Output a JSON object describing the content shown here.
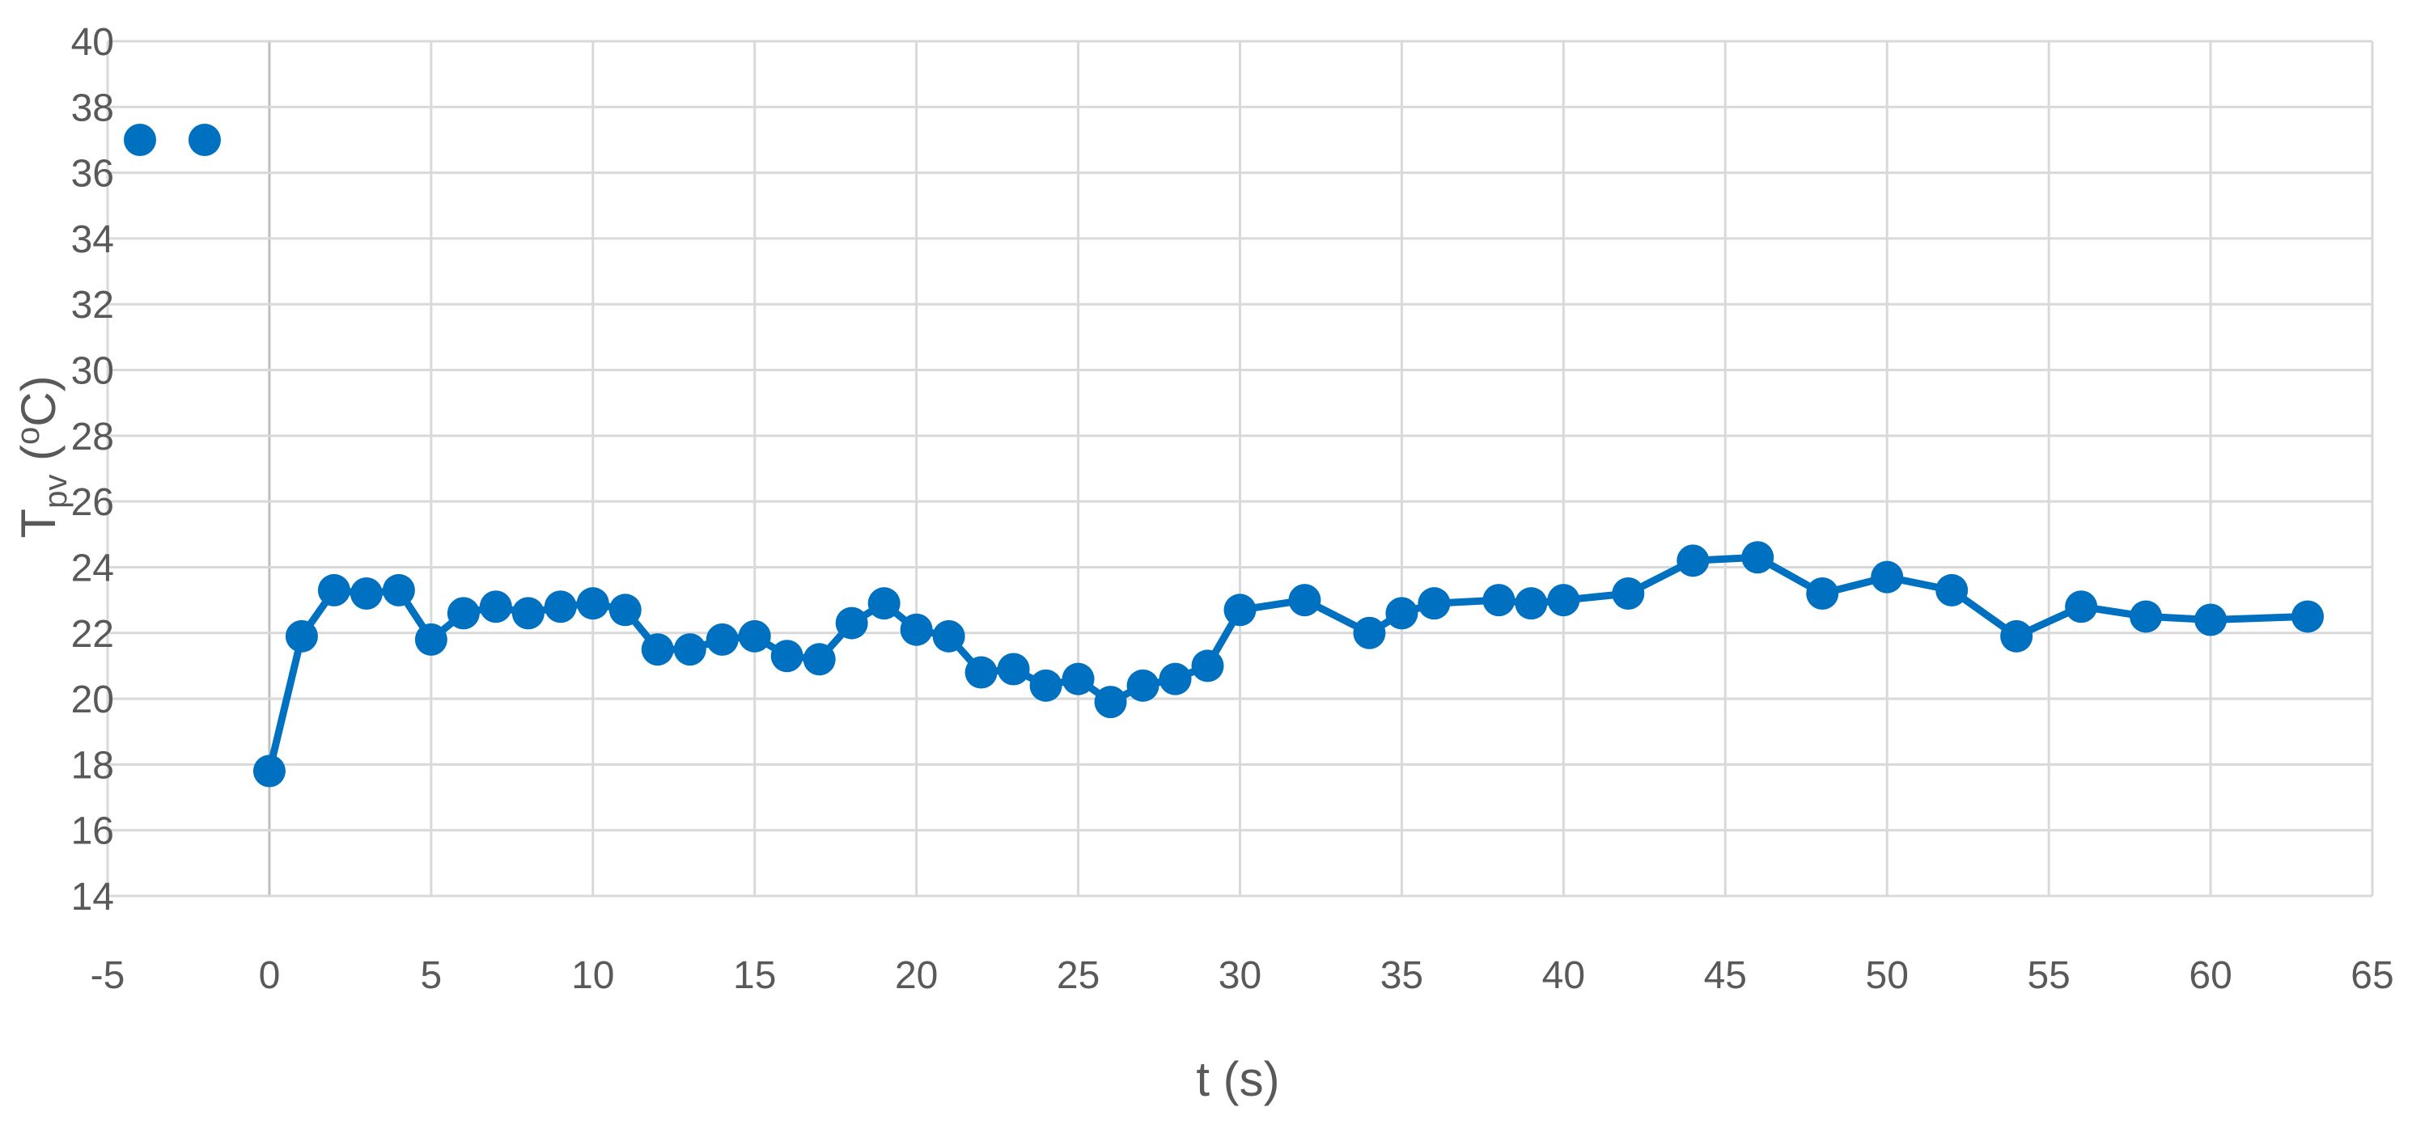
{
  "chart_data": {
    "type": "line",
    "xlabel": "t (s)",
    "ylabel": {
      "main": "T",
      "sub": "pv",
      "unit": " (",
      "deg": "o",
      "close": "C)"
    },
    "xlim": [
      -5,
      65
    ],
    "ylim": [
      14,
      40
    ],
    "x_ticks": [
      -5,
      0,
      5,
      10,
      15,
      20,
      25,
      30,
      35,
      40,
      45,
      50,
      55,
      60,
      65
    ],
    "y_ticks": [
      14,
      16,
      18,
      20,
      22,
      24,
      26,
      28,
      30,
      32,
      34,
      36,
      38,
      40
    ],
    "grid": true,
    "color": "#0070c0",
    "isolated_points": [
      {
        "x": -4,
        "y": 37
      },
      {
        "x": -2,
        "y": 37
      }
    ],
    "series": [
      {
        "x": [
          0,
          1,
          2,
          3,
          4,
          5,
          6,
          7,
          8,
          9,
          10,
          11,
          12,
          13,
          14,
          15,
          16,
          17,
          18,
          19,
          20,
          21,
          22,
          23,
          24,
          25,
          26,
          27,
          28,
          29,
          30,
          32,
          34,
          35,
          36,
          38,
          39,
          40,
          42,
          44,
          46,
          48,
          50,
          52,
          54,
          56,
          58,
          60,
          63
        ],
        "values": [
          17.8,
          21.9,
          23.3,
          23.2,
          23.3,
          21.8,
          22.6,
          22.8,
          22.6,
          22.8,
          22.9,
          22.7,
          21.5,
          21.5,
          21.8,
          21.9,
          21.3,
          21.2,
          22.3,
          22.9,
          22.1,
          21.9,
          20.8,
          20.9,
          20.4,
          20.6,
          19.9,
          20.4,
          20.6,
          21.0,
          22.7,
          23.0,
          22.0,
          22.6,
          22.9,
          23.0,
          22.9,
          23.0,
          23.2,
          24.2,
          24.3,
          23.2,
          23.7,
          23.3,
          21.9,
          22.8,
          22.5,
          22.4,
          22.5
        ]
      }
    ]
  }
}
